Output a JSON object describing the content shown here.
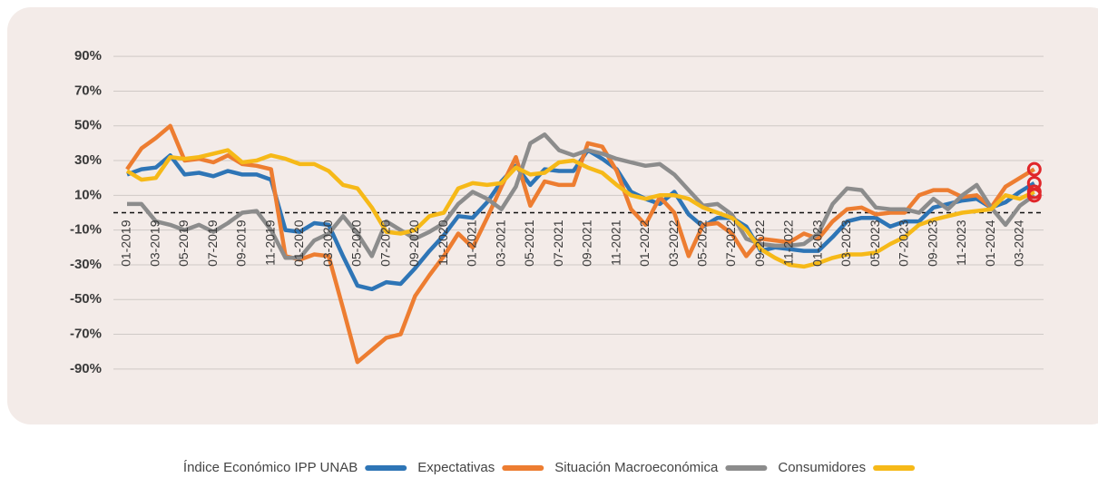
{
  "chart_data": {
    "type": "line",
    "categories": [
      "01-2019",
      null,
      "03-2019",
      null,
      "05-2019",
      null,
      "07-2019",
      null,
      "09-2019",
      null,
      "11-2019",
      null,
      "01-2020",
      null,
      "03-2020",
      null,
      "05-2020",
      null,
      "07-2020",
      null,
      "09-2020",
      null,
      "11-2020",
      null,
      "01-2021",
      null,
      "03-2021",
      null,
      "05-2021",
      null,
      "07-2021",
      null,
      "09-2021",
      null,
      "11-2021",
      null,
      "01-2022",
      null,
      "03-2022",
      null,
      "05-2022",
      null,
      "07-2022",
      null,
      "09-2022",
      null,
      "11-2022",
      null,
      "01-2023",
      null,
      "03-2023",
      null,
      "05-2023",
      null,
      "07-2023",
      null,
      "09-2023",
      null,
      "11-2023",
      null,
      "01-2024",
      null,
      "03-2024",
      null
    ],
    "series": [
      {
        "name": "Índice Económico IPP UNAB",
        "color": "#2e75b6",
        "values": [
          22,
          25,
          26,
          33,
          22,
          23,
          21,
          24,
          22,
          22,
          19,
          -10,
          -11,
          -6,
          -7,
          -25,
          -42,
          -44,
          -40,
          -41,
          -32,
          -22,
          -13,
          -2,
          -3,
          6,
          18,
          27,
          16,
          25,
          24,
          24,
          36,
          31,
          25,
          12,
          8,
          5,
          12,
          -1,
          -8,
          -3,
          -3,
          -8,
          -22,
          -20,
          -21,
          -22,
          -22,
          -14,
          -5,
          -3,
          -3,
          -8,
          -5,
          -5,
          3,
          5,
          7,
          8,
          3,
          6,
          12,
          17
        ]
      },
      {
        "name": "Expectativas",
        "color": "#ed7d31",
        "values": [
          25,
          37,
          43,
          50,
          30,
          31,
          29,
          33,
          28,
          27,
          25,
          -25,
          -27,
          -24,
          -25,
          -55,
          -86,
          -79,
          -72,
          -70,
          -48,
          -36,
          -25,
          -12,
          -20,
          -3,
          15,
          32,
          4,
          18,
          16,
          16,
          40,
          38,
          24,
          2,
          -7,
          9,
          0,
          -25,
          -7,
          -6,
          -12,
          -25,
          -15,
          -16,
          -17,
          -12,
          -15,
          -5,
          2,
          3,
          -1,
          0,
          0,
          10,
          13,
          13,
          9,
          10,
          3,
          15,
          20,
          25
        ]
      },
      {
        "name": "Situación Macroeconómica",
        "color": "#8c8c8c",
        "values": [
          5,
          5,
          -5,
          -7,
          -10,
          -7,
          -11,
          -6,
          0,
          1,
          -10,
          -26,
          -26,
          -16,
          -12,
          -2,
          -12,
          -25,
          -5,
          -10,
          -15,
          -11,
          -6,
          5,
          12,
          8,
          2,
          15,
          40,
          45,
          36,
          33,
          36,
          34,
          31,
          29,
          27,
          28,
          22,
          13,
          4,
          5,
          -1,
          -15,
          -18,
          -19,
          -19,
          -18,
          -12,
          5,
          14,
          13,
          3,
          2,
          2,
          0,
          8,
          2,
          10,
          16,
          3,
          -7,
          4,
          10
        ]
      },
      {
        "name": "Consumidores",
        "color": "#f6b918",
        "values": [
          24,
          19,
          20,
          32,
          31,
          32,
          34,
          36,
          29,
          30,
          33,
          31,
          28,
          28,
          24,
          16,
          14,
          3,
          -11,
          -12,
          -10,
          -2,
          0,
          14,
          17,
          16,
          17,
          26,
          22,
          23,
          29,
          30,
          26,
          23,
          16,
          10,
          8,
          10,
          10,
          8,
          3,
          0,
          -3,
          -10,
          -21,
          -26,
          -30,
          -31,
          -29,
          -26,
          -24,
          -24,
          -23,
          -18,
          -14,
          -7,
          -4,
          -2,
          0,
          1,
          2,
          10,
          8,
          12
        ]
      }
    ],
    "ylim": [
      -100,
      100
    ],
    "yticks": [
      {
        "value": -90,
        "label": "-90%"
      },
      {
        "value": -70,
        "label": "-70%"
      },
      {
        "value": -50,
        "label": "-50%"
      },
      {
        "value": -30,
        "label": "-30%"
      },
      {
        "value": -10,
        "label": "-10%"
      },
      {
        "value": 10,
        "label": "10%"
      },
      {
        "value": 30,
        "label": "30%"
      },
      {
        "value": 50,
        "label": "50%"
      },
      {
        "value": 70,
        "label": "70%"
      },
      {
        "value": 90,
        "label": "90%"
      }
    ],
    "grid": true,
    "reference_line": 0,
    "last_point_marker_color": "#e0262a",
    "legend": "bottom"
  }
}
